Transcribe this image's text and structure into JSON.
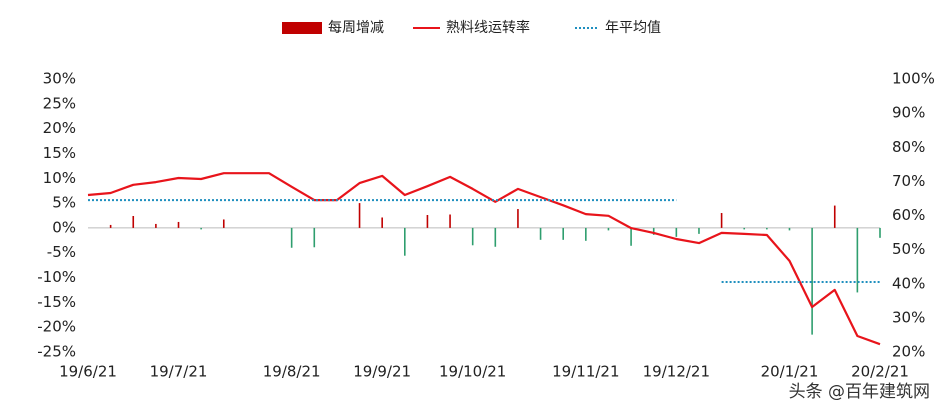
{
  "chart_data": {
    "type": "bar-line",
    "legend": "top",
    "watermark": "头条 @百年建筑网",
    "categories": [
      "19/6/21",
      null,
      null,
      null,
      "19/7/21",
      null,
      null,
      null,
      null,
      "19/8/21",
      null,
      null,
      null,
      "19/9/21",
      null,
      null,
      null,
      "19/10/21",
      null,
      null,
      null,
      null,
      "19/11/21",
      null,
      null,
      null,
      "19/12/21",
      null,
      null,
      null,
      null,
      "20/1/21",
      null,
      null,
      null,
      "20/2/21"
    ],
    "series": [
      {
        "name": "每周增减",
        "type": "bar",
        "axis": "y",
        "color": "#c00000",
        "negative_color": "#2e9e6e",
        "values": [
          0,
          0.6,
          2.4,
          0.8,
          1.2,
          -0.3,
          1.7,
          0,
          0,
          -4,
          -3.9,
          0,
          5,
          2.1,
          -5.6,
          2.6,
          2.7,
          -3.5,
          -3.8,
          3.8,
          -2.4,
          -2.4,
          -2.6,
          -0.5,
          -3.6,
          -1.4,
          -1.8,
          -1.2,
          3,
          -0.3,
          -0.3,
          -0.5,
          -21.5,
          4.5,
          -13,
          -2
        ]
      },
      {
        "name": "熟料线运转率",
        "type": "line",
        "axis": "y2",
        "color": "#e8141b",
        "values": [
          66.0,
          66.6,
          69,
          69.8,
          71,
          70.7,
          72.4,
          72.4,
          72.4,
          68.4,
          64.5,
          64.5,
          69.5,
          71.6,
          66,
          68.6,
          71.3,
          67.8,
          64,
          67.8,
          65.4,
          63,
          60.4,
          59.9,
          56.3,
          54.9,
          53.1,
          51.9,
          54.9,
          54.6,
          54.3,
          46.7,
          33.2,
          38.2,
          24.7,
          22.3
        ]
      },
      {
        "name": "年平均值",
        "type": "dotted",
        "axis": "y2",
        "color": "#1f8fbf",
        "values": [
          64.5,
          64.5,
          64.5,
          64.5,
          64.5,
          64.5,
          64.5,
          64.5,
          64.5,
          64.5,
          64.5,
          64.5,
          64.5,
          64.5,
          64.5,
          64.5,
          64.5,
          64.5,
          64.5,
          64.5,
          64.5,
          64.5,
          64.5,
          64.5,
          64.5,
          64.5,
          64.5,
          null,
          40.5,
          40.5,
          40.5,
          40.5,
          40.5,
          40.5,
          40.5,
          40.5
        ]
      }
    ],
    "ylim": [
      -25,
      30
    ],
    "yticks": [
      {
        "value": -25,
        "label": "-25%"
      },
      {
        "value": -20,
        "label": "-20%"
      },
      {
        "value": -15,
        "label": "-15%"
      },
      {
        "value": -10,
        "label": "-10%"
      },
      {
        "value": -5,
        "label": "-5%"
      },
      {
        "value": 0,
        "label": "0%"
      },
      {
        "value": 5,
        "label": "5%"
      },
      {
        "value": 10,
        "label": "10%"
      },
      {
        "value": 15,
        "label": "15%"
      },
      {
        "value": 20,
        "label": "20%"
      },
      {
        "value": 25,
        "label": "25%"
      },
      {
        "value": 30,
        "label": "30%"
      }
    ],
    "y2lim": [
      20,
      100
    ],
    "y2ticks": [
      {
        "value": 20,
        "label": "20%"
      },
      {
        "value": 30,
        "label": "30%"
      },
      {
        "value": 40,
        "label": "40%"
      },
      {
        "value": 50,
        "label": "50%"
      },
      {
        "value": 60,
        "label": "60%"
      },
      {
        "value": 70,
        "label": "70%"
      },
      {
        "value": 80,
        "label": "80%"
      },
      {
        "value": 90,
        "label": "90%"
      },
      {
        "value": 100,
        "label": "100%"
      }
    ]
  }
}
